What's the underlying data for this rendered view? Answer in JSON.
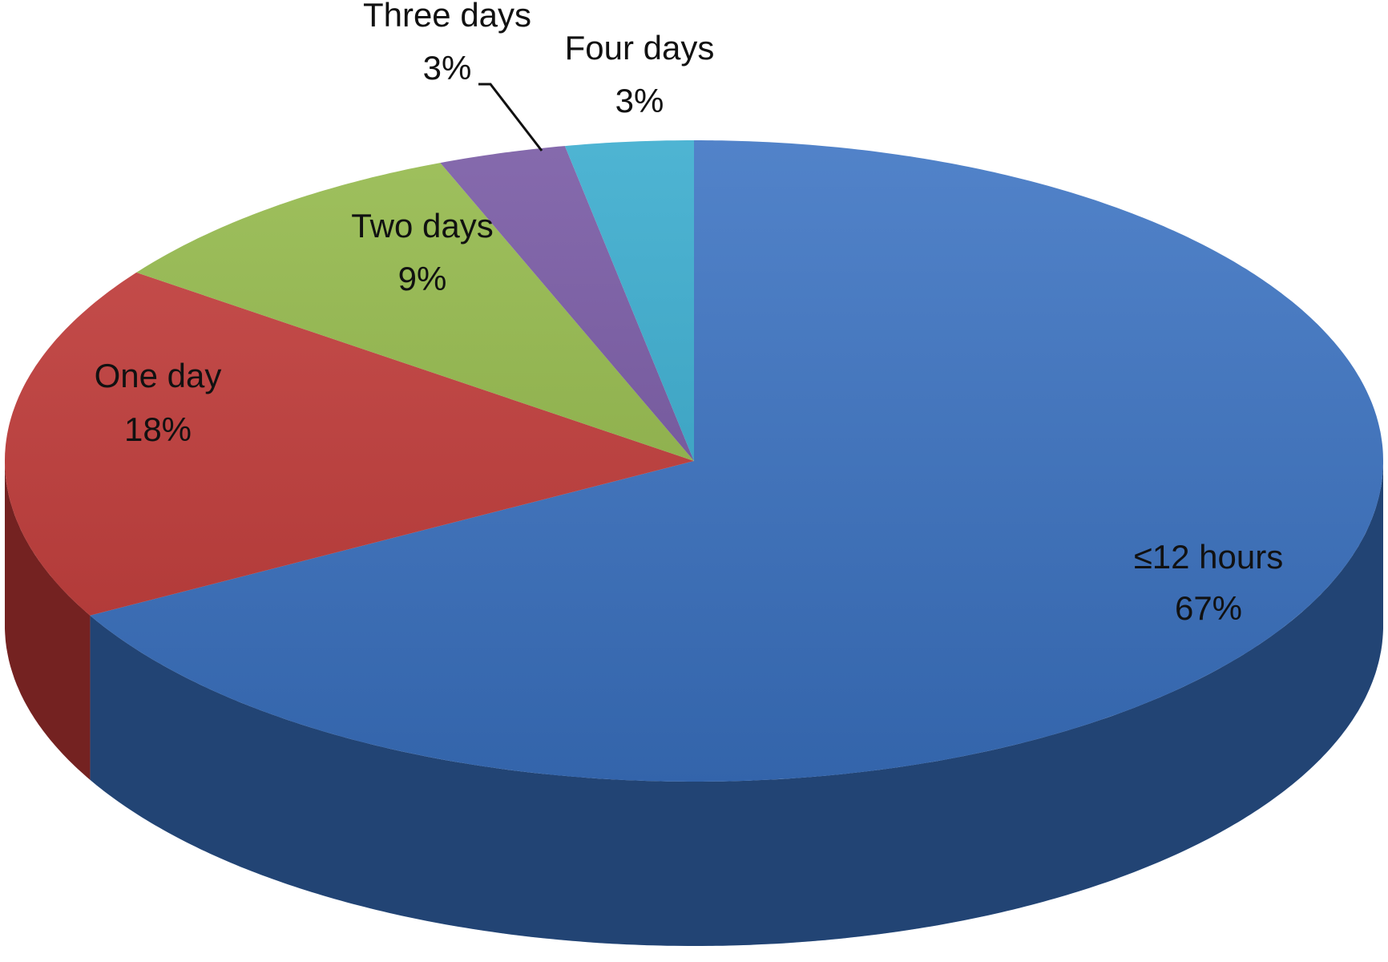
{
  "chart_data": {
    "type": "pie",
    "categories": [
      "≤12 hours",
      "One day",
      "Two days",
      "Three days",
      "Four days"
    ],
    "values": [
      67,
      18,
      9,
      3,
      3
    ],
    "value_labels": [
      "67%",
      "18%",
      "9%",
      "3%",
      "3%"
    ],
    "colors": [
      "#3a72c2",
      "#c23a38",
      "#92b848",
      "#7556a2",
      "#36aacd"
    ]
  }
}
